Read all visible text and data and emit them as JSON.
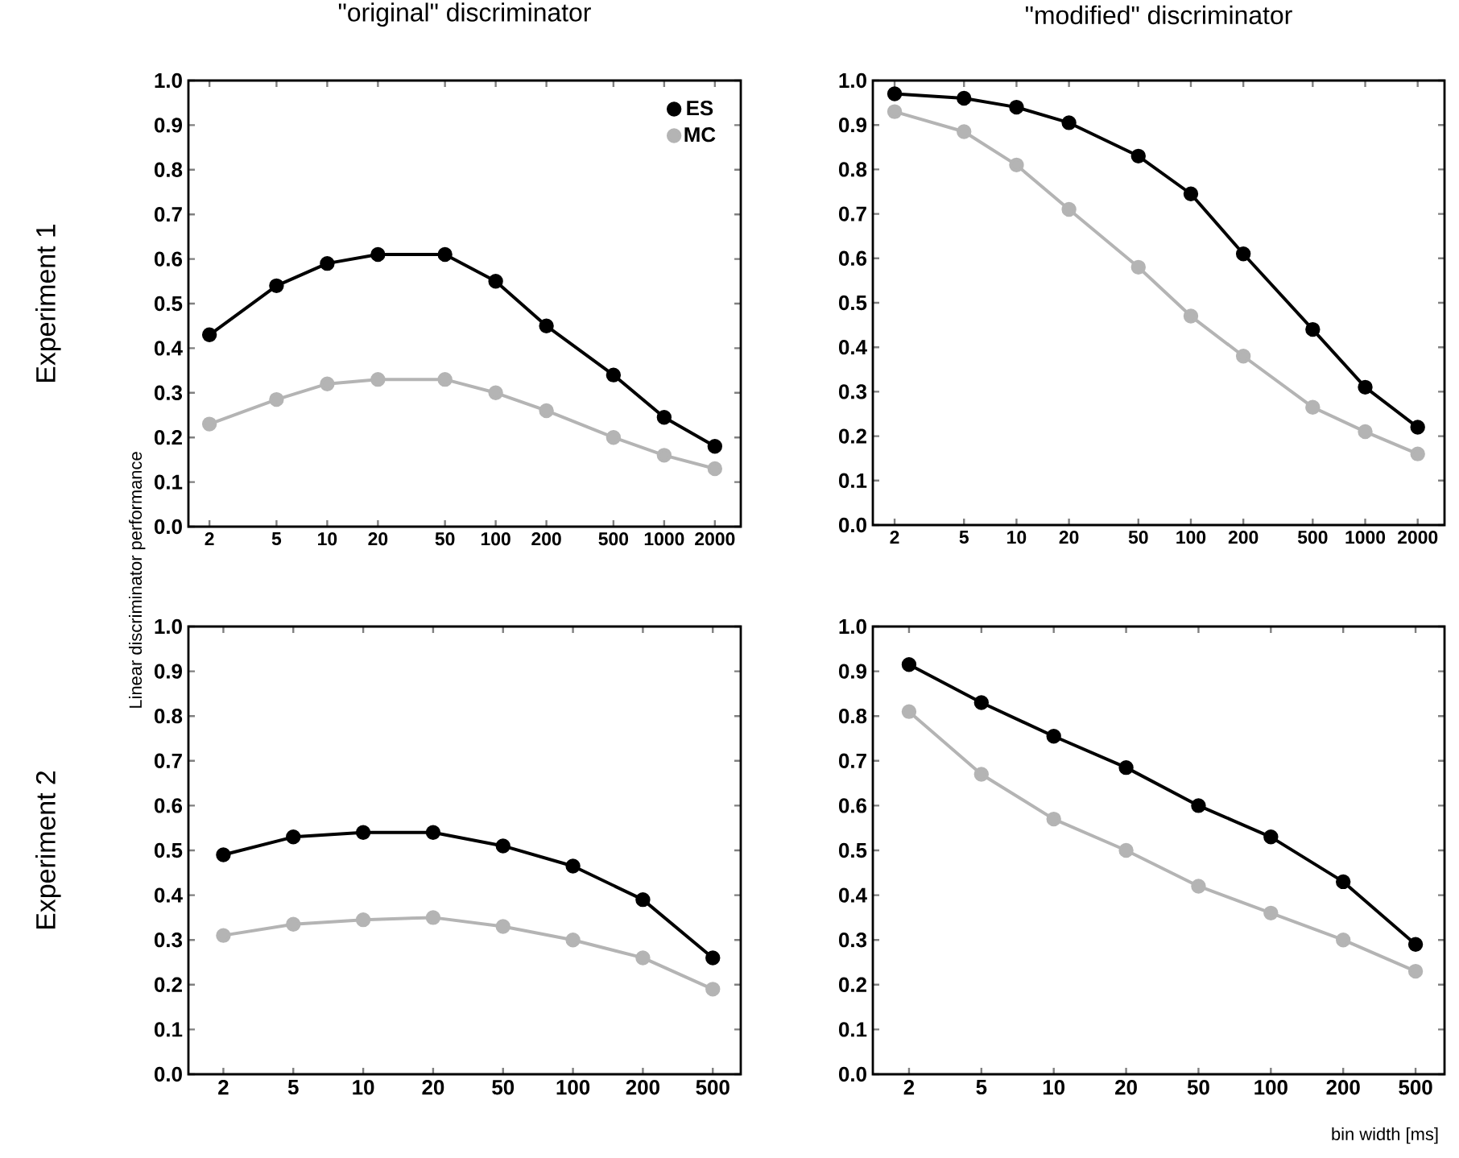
{
  "chart_data": [
    {
      "type": "line",
      "title": "\"original\" discriminator",
      "ylabel": "Experiment 1",
      "annotations": [
        "Linear discriminator performance"
      ],
      "x": [
        2,
        5,
        10,
        20,
        50,
        100,
        200,
        500,
        1000,
        2000
      ],
      "log": "x",
      "xlim": [
        1.5,
        2850
      ],
      "xticks": [
        2,
        5,
        10,
        20,
        50,
        100,
        200,
        500,
        1000,
        2000
      ],
      "ylim": [
        0,
        1
      ],
      "yticks": [
        {
          "value": 0,
          "label": "0.0"
        },
        {
          "value": 0.1,
          "label": "0.1"
        },
        {
          "value": 0.2,
          "label": "0.2"
        },
        {
          "value": 0.3,
          "label": "0.3"
        },
        {
          "value": 0.4,
          "label": "0.4"
        },
        {
          "value": 0.5,
          "label": "0.5"
        },
        {
          "value": 0.6,
          "label": "0.6"
        },
        {
          "value": 0.7,
          "label": "0.7"
        },
        {
          "value": 0.8,
          "label": "0.8"
        },
        {
          "value": 0.9,
          "label": "0.9"
        },
        {
          "value": 1,
          "label": "1.0"
        }
      ],
      "marker": "circle",
      "line_style": "solid",
      "grid": false,
      "legend": "top right",
      "series": [
        {
          "name": "ES",
          "color": "#000000",
          "values": [
            0.43,
            0.54,
            0.59,
            0.61,
            0.61,
            0.55,
            0.45,
            0.34,
            0.245,
            0.18
          ]
        },
        {
          "name": "MC",
          "color": "#b4b4b4",
          "values": [
            0.23,
            0.285,
            0.32,
            0.33,
            0.33,
            0.3,
            0.26,
            0.2,
            0.16,
            0.13
          ]
        }
      ]
    },
    {
      "type": "line",
      "title": "\"modified\" discriminator",
      "x": [
        2,
        5,
        10,
        20,
        50,
        100,
        200,
        500,
        1000,
        2000
      ],
      "log": "x",
      "xlim": [
        1.5,
        2850
      ],
      "xticks": [
        2,
        5,
        10,
        20,
        50,
        100,
        200,
        500,
        1000,
        2000
      ],
      "ylim": [
        0,
        1
      ],
      "yticks": [
        {
          "value": 0,
          "label": "0.0"
        },
        {
          "value": 0.1,
          "label": "0.1"
        },
        {
          "value": 0.2,
          "label": "0.2"
        },
        {
          "value": 0.3,
          "label": "0.3"
        },
        {
          "value": 0.4,
          "label": "0.4"
        },
        {
          "value": 0.5,
          "label": "0.5"
        },
        {
          "value": 0.6,
          "label": "0.6"
        },
        {
          "value": 0.7,
          "label": "0.7"
        },
        {
          "value": 0.8,
          "label": "0.8"
        },
        {
          "value": 0.9,
          "label": "0.9"
        },
        {
          "value": 1,
          "label": "1.0"
        }
      ],
      "marker": "circle",
      "line_style": "solid",
      "grid": false,
      "series": [
        {
          "color": "#000000",
          "values": [
            0.97,
            0.96,
            0.94,
            0.905,
            0.83,
            0.745,
            0.61,
            0.44,
            0.31,
            0.22
          ]
        },
        {
          "color": "#b4b4b4",
          "values": [
            0.93,
            0.885,
            0.81,
            0.71,
            0.58,
            0.47,
            0.38,
            0.265,
            0.21,
            0.16
          ]
        }
      ]
    },
    {
      "type": "line",
      "ylabel": "Experiment 2",
      "categories": [
        "2",
        "5",
        "10",
        "20",
        "50",
        "100",
        "200",
        "500"
      ],
      "ylim": [
        0,
        1
      ],
      "yticks": [
        {
          "value": 0,
          "label": "0.0"
        },
        {
          "value": 0.1,
          "label": "0.1"
        },
        {
          "value": 0.2,
          "label": "0.2"
        },
        {
          "value": 0.3,
          "label": "0.3"
        },
        {
          "value": 0.4,
          "label": "0.4"
        },
        {
          "value": 0.5,
          "label": "0.5"
        },
        {
          "value": 0.6,
          "label": "0.6"
        },
        {
          "value": 0.7,
          "label": "0.7"
        },
        {
          "value": 0.8,
          "label": "0.8"
        },
        {
          "value": 0.9,
          "label": "0.9"
        },
        {
          "value": 1,
          "label": "1.0"
        }
      ],
      "marker": "circle",
      "line_style": "solid",
      "grid": false,
      "series": [
        {
          "color": "#000000",
          "values": [
            0.49,
            0.53,
            0.54,
            0.54,
            0.51,
            0.465,
            0.39,
            0.26
          ]
        },
        {
          "color": "#b4b4b4",
          "values": [
            0.31,
            0.335,
            0.345,
            0.35,
            0.33,
            0.3,
            0.26,
            0.19
          ]
        }
      ]
    },
    {
      "type": "line",
      "xlabel": "bin width [ms]",
      "categories": [
        "2",
        "5",
        "10",
        "20",
        "50",
        "100",
        "200",
        "500"
      ],
      "ylim": [
        0,
        1
      ],
      "yticks": [
        {
          "value": 0,
          "label": "0.0"
        },
        {
          "value": 0.1,
          "label": "0.1"
        },
        {
          "value": 0.2,
          "label": "0.2"
        },
        {
          "value": 0.3,
          "label": "0.3"
        },
        {
          "value": 0.4,
          "label": "0.4"
        },
        {
          "value": 0.5,
          "label": "0.5"
        },
        {
          "value": 0.6,
          "label": "0.6"
        },
        {
          "value": 0.7,
          "label": "0.7"
        },
        {
          "value": 0.8,
          "label": "0.8"
        },
        {
          "value": 0.9,
          "label": "0.9"
        },
        {
          "value": 1,
          "label": "1.0"
        }
      ],
      "marker": "circle",
      "line_style": "solid",
      "grid": false,
      "series": [
        {
          "color": "#000000",
          "values": [
            0.915,
            0.83,
            0.755,
            0.685,
            0.6,
            0.53,
            0.43,
            0.29
          ]
        },
        {
          "color": "#b4b4b4",
          "values": [
            0.81,
            0.67,
            0.57,
            0.5,
            0.42,
            0.36,
            0.3,
            0.23
          ]
        }
      ]
    }
  ]
}
